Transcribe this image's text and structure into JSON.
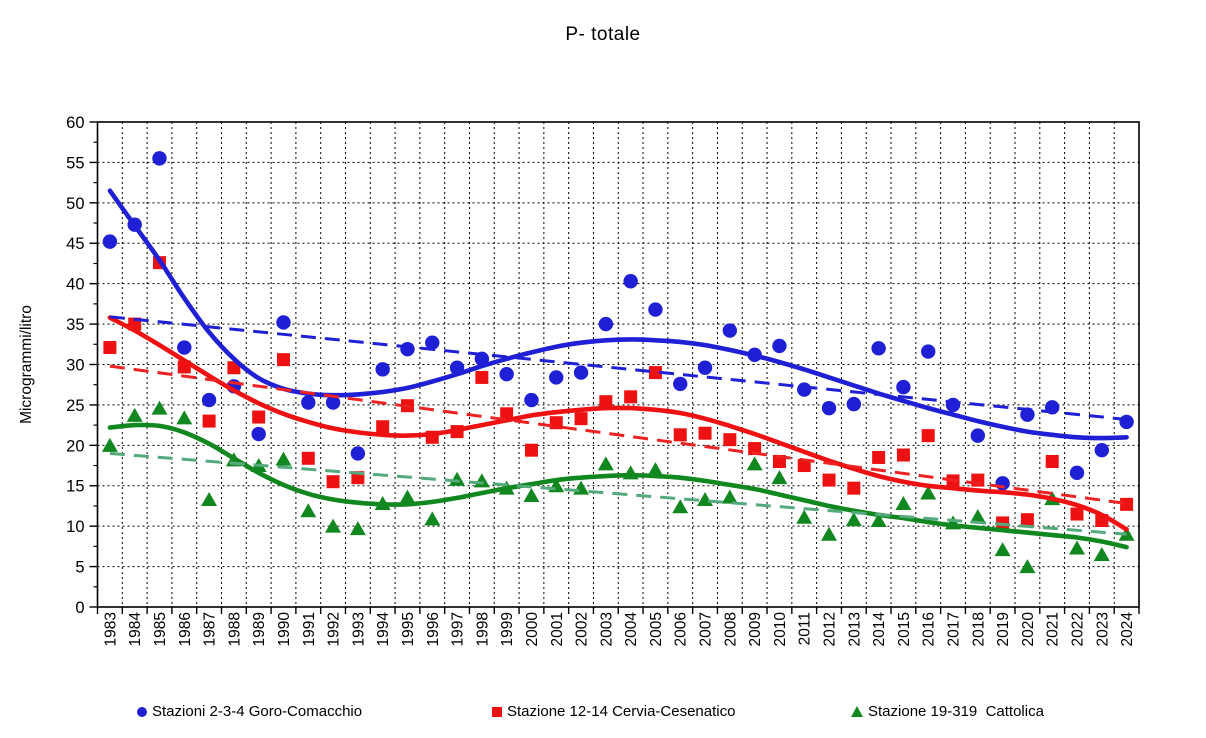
{
  "title": "P- totale",
  "chart_data": {
    "type": "scatter",
    "title": "P- totale",
    "xlabel": "",
    "ylabel": "Microgrammi/litro",
    "ylim": [
      0,
      60
    ],
    "ytick_step": 5,
    "grid": true,
    "legend_position": "bottom",
    "years": [
      1983,
      1984,
      1985,
      1986,
      1987,
      1988,
      1989,
      1990,
      1991,
      1992,
      1993,
      1994,
      1995,
      1996,
      1997,
      1998,
      1999,
      2000,
      2001,
      2002,
      2003,
      2004,
      2005,
      2006,
      2007,
      2008,
      2009,
      2010,
      2011,
      2012,
      2013,
      2014,
      2015,
      2016,
      2017,
      2018,
      2019,
      2020,
      2021,
      2022,
      2023,
      2024
    ],
    "series": [
      {
        "name": "Stazioni 2-3-4 Goro-Comacchio",
        "marker": "circle",
        "color": "#1f1fd6",
        "dashed_color": "#1f1fd6",
        "values": [
          45.2,
          47.3,
          55.5,
          32.1,
          25.6,
          27.3,
          21.4,
          35.2,
          25.3,
          25.3,
          19.0,
          29.4,
          31.9,
          32.7,
          29.6,
          30.7,
          28.8,
          25.6,
          28.4,
          29.0,
          35.0,
          40.3,
          36.8,
          27.6,
          29.6,
          34.2,
          31.2,
          32.3,
          26.9,
          24.6,
          25.1,
          32.0,
          27.2,
          31.6,
          25.0,
          21.2,
          15.3,
          23.8,
          24.7,
          16.6,
          19.4,
          22.9
        ],
        "trend_solid": [
          51.5,
          47.2,
          42.9,
          38.2,
          34.0,
          30.7,
          28.3,
          27.0,
          26.4,
          26.2,
          26.3,
          26.6,
          27.1,
          27.9,
          28.8,
          29.8,
          30.7,
          31.5,
          32.2,
          32.7,
          33.0,
          33.1,
          33.0,
          32.8,
          32.4,
          31.8,
          31.1,
          30.3,
          29.4,
          28.4,
          27.4,
          26.4,
          25.5,
          24.6,
          23.8,
          23.0,
          22.3,
          21.7,
          21.3,
          21.0,
          20.9,
          21.0
        ],
        "trend_dashed_endpoints": [
          35.9,
          23.2
        ]
      },
      {
        "name": "Stazione 12-14 Cervia-Cesenatico",
        "marker": "square",
        "color": "#ee1111",
        "dashed_color": "#ee2222",
        "values": [
          32.1,
          35.0,
          42.6,
          29.7,
          23.0,
          29.6,
          23.5,
          30.6,
          18.4,
          15.5,
          16.0,
          22.3,
          24.9,
          21.0,
          21.7,
          28.4,
          23.9,
          19.4,
          22.8,
          23.3,
          25.4,
          26.0,
          29.0,
          21.3,
          21.5,
          20.7,
          19.6,
          18.0,
          17.5,
          15.7,
          14.7,
          18.5,
          18.8,
          21.2,
          15.6,
          15.7,
          10.4,
          10.8,
          18.0,
          11.5,
          10.7,
          12.7
        ],
        "trend_solid": [
          35.8,
          34.2,
          32.4,
          30.5,
          28.6,
          26.8,
          25.2,
          23.9,
          22.9,
          22.1,
          21.6,
          21.3,
          21.2,
          21.4,
          21.9,
          22.5,
          23.1,
          23.7,
          24.1,
          24.4,
          24.6,
          24.6,
          24.4,
          24.0,
          23.3,
          22.4,
          21.4,
          20.3,
          19.2,
          18.1,
          17.1,
          16.2,
          15.5,
          15.0,
          14.7,
          14.4,
          14.2,
          13.9,
          13.4,
          12.6,
          11.4,
          9.6
        ],
        "trend_dashed_endpoints": [
          29.8,
          12.8
        ]
      },
      {
        "name": "Stazione 19-319  Cattolica",
        "marker": "triangle",
        "color": "#11871f",
        "dashed_color": "#55aa7d",
        "values": [
          20.0,
          23.7,
          24.6,
          23.4,
          13.3,
          18.2,
          17.5,
          18.3,
          11.9,
          10.0,
          9.7,
          12.8,
          13.6,
          10.9,
          15.8,
          15.6,
          14.7,
          13.8,
          15.0,
          14.7,
          17.7,
          16.6,
          17.0,
          12.4,
          13.3,
          13.6,
          17.7,
          16.0,
          11.1,
          9.0,
          10.8,
          10.7,
          12.8,
          14.1,
          10.4,
          11.2,
          7.1,
          5.0,
          13.4,
          7.3,
          6.5,
          9.0
        ],
        "trend_solid": [
          22.2,
          22.5,
          22.4,
          21.6,
          20.2,
          18.4,
          16.6,
          15.1,
          14.0,
          13.3,
          12.9,
          12.7,
          12.7,
          13.0,
          13.5,
          14.1,
          14.7,
          15.2,
          15.7,
          16.0,
          16.2,
          16.3,
          16.2,
          16.0,
          15.6,
          15.1,
          14.6,
          13.9,
          13.2,
          12.5,
          11.9,
          11.4,
          11.0,
          10.5,
          10.1,
          9.8,
          9.5,
          9.2,
          8.9,
          8.6,
          8.1,
          7.4
        ],
        "trend_dashed_endpoints": [
          19.0,
          9.0
        ]
      }
    ]
  },
  "legend": {
    "entries": [
      {
        "label": "Stazioni 2-3-4 Goro-Comacchio"
      },
      {
        "label": "Stazione 12-14 Cervia-Cesenatico"
      },
      {
        "label": "Stazione 19-319  Cattolica"
      }
    ]
  }
}
